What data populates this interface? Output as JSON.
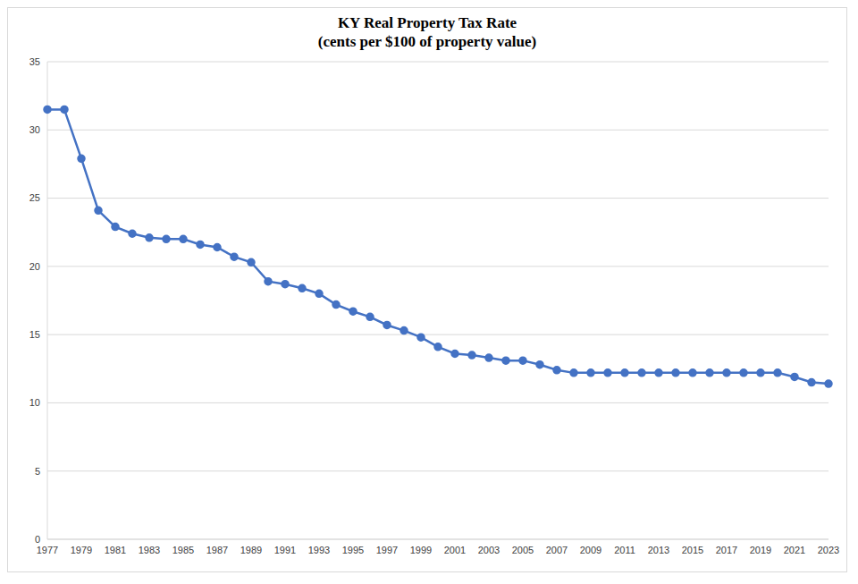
{
  "chart_data": {
    "type": "line",
    "title": "KY Real Property Tax Rate",
    "subtitle": "(cents per $100 of property value)",
    "categories": [
      "1977",
      null,
      "1979",
      null,
      "1981",
      null,
      "1983",
      null,
      "1985",
      null,
      "1987",
      null,
      "1989",
      null,
      "1991",
      null,
      "1993",
      null,
      "1995",
      null,
      "1997",
      null,
      "1999",
      null,
      "2001",
      null,
      "2003",
      null,
      "2005",
      null,
      "2007",
      null,
      "2009",
      null,
      "2011",
      null,
      "2013",
      null,
      "2015",
      null,
      "2017",
      null,
      "2019",
      null,
      "2021",
      null,
      "2023"
    ],
    "values": [
      31.5,
      31.5,
      27.9,
      24.1,
      22.9,
      22.4,
      22.1,
      22.0,
      22.0,
      21.6,
      21.4,
      20.7,
      20.3,
      18.9,
      18.7,
      18.4,
      18.0,
      17.2,
      16.7,
      16.3,
      15.7,
      15.3,
      14.8,
      14.1,
      13.6,
      13.5,
      13.3,
      13.1,
      13.1,
      12.8,
      12.4,
      12.2,
      12.2,
      12.2,
      12.2,
      12.2,
      12.2,
      12.2,
      12.2,
      12.2,
      12.2,
      12.2,
      12.2,
      12.2,
      11.9,
      11.5,
      11.4
    ],
    "color": "#4472c4",
    "marker": "circle",
    "ylim": [
      0,
      35
    ],
    "yticks": [
      0,
      5,
      10,
      15,
      20,
      25,
      30,
      35
    ],
    "grid": true
  }
}
